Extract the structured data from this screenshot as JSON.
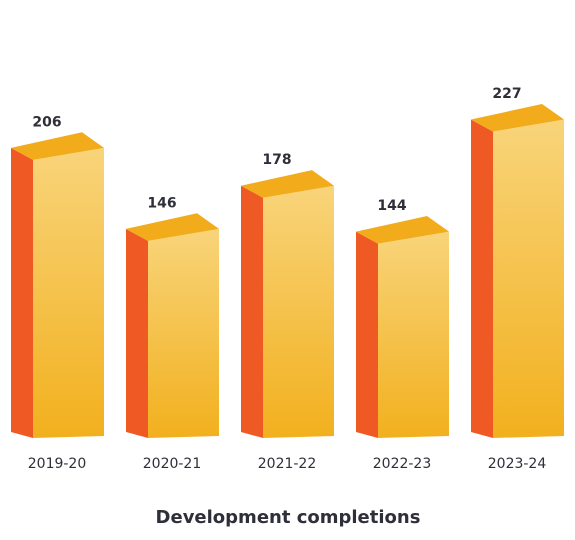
{
  "chart_data": {
    "type": "bar",
    "title": "Development completions",
    "xlabel": "",
    "ylabel": "",
    "categories": [
      "2019-20",
      "2020-21",
      "2021-22",
      "2022-23",
      "2023-24"
    ],
    "values": [
      206,
      146,
      178,
      144,
      227
    ],
    "data_labels": [
      "206",
      "146",
      "178",
      "144",
      "227"
    ],
    "ylim": [
      0,
      250
    ],
    "grid": false,
    "legend": "none",
    "colors": {
      "front_top": "#f8d47a",
      "front_bottom": "#f2b01e",
      "side": "#ef5a24",
      "top": "#f2ab1a"
    }
  }
}
